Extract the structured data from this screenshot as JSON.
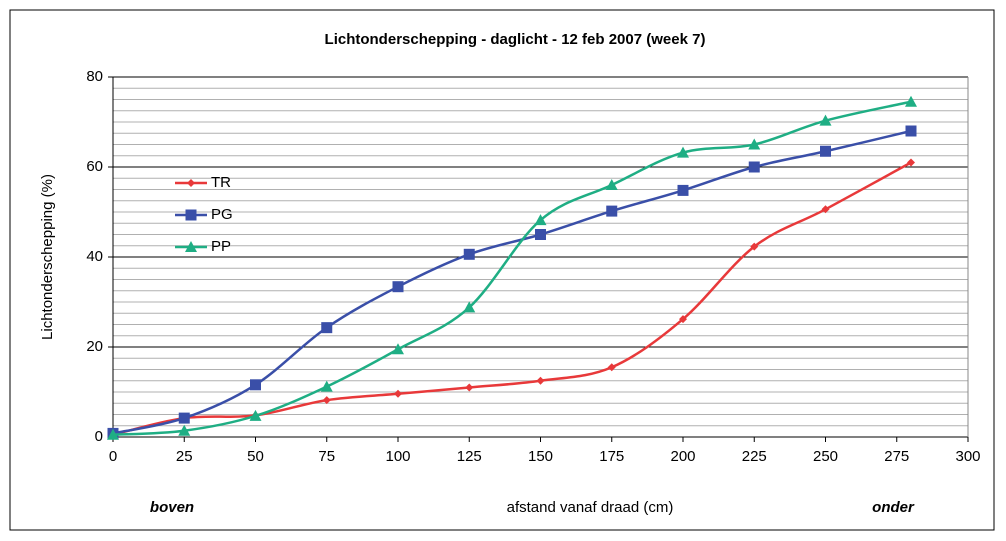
{
  "chart_data": {
    "type": "line",
    "title": "Lichtonderschepping  - daglicht - 12 feb 2007 (week 7)",
    "ylabel": "Lichtonderschepping (%)",
    "xlabel": "afstand vanaf draad (cm)",
    "annotations": [
      "boven",
      "onder"
    ],
    "x": [
      0,
      25,
      50,
      75,
      100,
      125,
      150,
      175,
      200,
      225,
      250,
      280
    ],
    "series": [
      {
        "name": "TR",
        "color": "#e8393a",
        "marker": "diamond",
        "values": [
          0.5,
          4.2,
          4.8,
          8.2,
          9.6,
          11,
          12.5,
          15.5,
          26.2,
          42.3,
          50.6,
          61
        ]
      },
      {
        "name": "PG",
        "color": "#3a4fa8",
        "marker": "square",
        "values": [
          0.8,
          4.2,
          11.6,
          24.3,
          33.4,
          40.6,
          45,
          50.2,
          54.8,
          60,
          63.5,
          68
        ]
      },
      {
        "name": "PP",
        "color": "#1fae84",
        "marker": "triangle",
        "values": [
          0.5,
          1.4,
          4.7,
          11.2,
          19.5,
          28.8,
          48.2,
          56,
          63.2,
          65,
          70.3,
          74.5
        ]
      }
    ],
    "xlim": [
      0,
      300
    ],
    "xticks": [
      0,
      25,
      50,
      75,
      100,
      125,
      150,
      175,
      200,
      225,
      250,
      275,
      300
    ],
    "ylim": [
      0,
      80
    ],
    "yticks": [
      0,
      20,
      40,
      60,
      80
    ],
    "minor_yticks": [
      2.5,
      5,
      7.5,
      10,
      12.5,
      15,
      17.5,
      22.5,
      25,
      27.5,
      30,
      32.5,
      35,
      37.5,
      42.5,
      45,
      47.5,
      50,
      52.5,
      55,
      57.5,
      62.5,
      65,
      67.5,
      70,
      72.5,
      75,
      77.5
    ],
    "grid": true,
    "smooth": true,
    "legend": "upper left"
  }
}
